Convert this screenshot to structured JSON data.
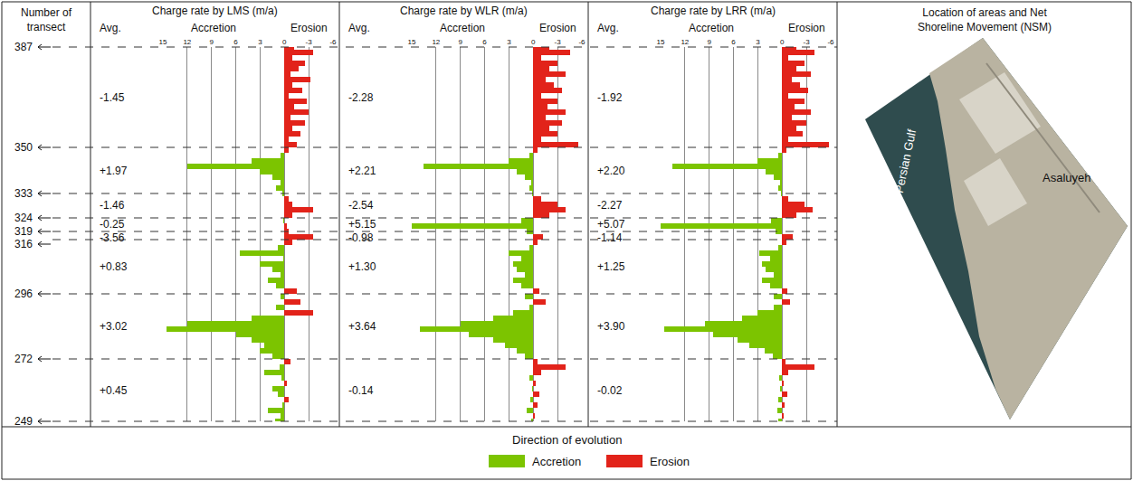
{
  "header": {
    "transect": "Number of transect",
    "location": "Location of areas and Net Shoreline Movement (NSM)",
    "avg": "Avg.",
    "accretion": "Accretion",
    "erosion": "Erosion"
  },
  "transect_marks": [
    387,
    350,
    333,
    324,
    319,
    316,
    296,
    272,
    249
  ],
  "chart_data": [
    {
      "type": "bar",
      "orientation": "horizontal",
      "title": "Charge rate by LMS (m/a)",
      "y": [
        249,
        251,
        253,
        255,
        257,
        259,
        261,
        263,
        265,
        267,
        269,
        271,
        273,
        275,
        277,
        279,
        281,
        283,
        285,
        287,
        289,
        291,
        293,
        295,
        297,
        299,
        301,
        303,
        305,
        307,
        309,
        311,
        313,
        315,
        317,
        319,
        321,
        323,
        325,
        327,
        329,
        331,
        333,
        335,
        337,
        339,
        341,
        343,
        345,
        347,
        349,
        351,
        353,
        355,
        357,
        359,
        361,
        363,
        365,
        367,
        369,
        371,
        373,
        375,
        377,
        379,
        381,
        383,
        385,
        387
      ],
      "values": [
        1.2,
        0.5,
        2.0,
        0.3,
        -0.5,
        0.8,
        1.5,
        -0.3,
        0.4,
        2.5,
        0.6,
        -0.8,
        1.5,
        3.0,
        2.5,
        4.0,
        6.0,
        14.5,
        12.0,
        4.0,
        -3.5,
        1.0,
        -2.0,
        0.5,
        -1.5,
        1.0,
        2.0,
        0.5,
        1.5,
        3.0,
        0.2,
        5.5,
        0.8,
        -1.0,
        -3.5,
        -0.5,
        -0.3,
        0.2,
        -1.0,
        -3.5,
        -1.0,
        -0.5,
        0.3,
        1.0,
        0.5,
        1.5,
        3.0,
        12.0,
        4.0,
        0.5,
        -0.5,
        -1.5,
        -0.5,
        -2.0,
        -1.0,
        -2.5,
        -0.8,
        -3.0,
        -1.2,
        -2.8,
        -0.5,
        -2.2,
        -1.0,
        -3.2,
        -0.8,
        -1.8,
        -2.5,
        -1.0,
        -3.5,
        -1.2
      ],
      "xlim": [
        15,
        -6
      ],
      "xticks": [
        15,
        12,
        9,
        6,
        3,
        0,
        -3,
        -6
      ],
      "ylim": [
        249,
        387
      ],
      "grid": true,
      "tick_labels": "x",
      "averages": [
        -1.45,
        1.97,
        -1.46,
        -0.25,
        -3.56,
        0.83,
        3.02,
        0.45
      ],
      "average_labels": [
        "-1.45",
        "+1.97",
        "-1.46",
        "-0.25",
        "-3.56",
        "+0.83",
        "+3.02",
        "+0.45"
      ]
    },
    {
      "type": "bar",
      "orientation": "horizontal",
      "title": "Charge rate by WLR (m/a)",
      "y": [
        249,
        251,
        253,
        255,
        257,
        259,
        261,
        263,
        265,
        267,
        269,
        271,
        273,
        275,
        277,
        279,
        281,
        283,
        285,
        287,
        289,
        291,
        293,
        295,
        297,
        299,
        301,
        303,
        305,
        307,
        309,
        311,
        313,
        315,
        317,
        319,
        321,
        323,
        325,
        327,
        329,
        331,
        333,
        335,
        337,
        339,
        341,
        343,
        345,
        347,
        349,
        351,
        353,
        355,
        357,
        359,
        361,
        363,
        365,
        367,
        369,
        371,
        373,
        375,
        377,
        379,
        381,
        383,
        385,
        387
      ],
      "values": [
        0.3,
        -0.2,
        0.8,
        -0.5,
        0.4,
        -0.8,
        0.2,
        -0.3,
        0.5,
        -1.0,
        -4.0,
        -0.5,
        1.0,
        2.0,
        3.5,
        5.0,
        8.0,
        14.0,
        9.0,
        5.0,
        2.5,
        0.5,
        -1.5,
        1.0,
        -0.8,
        1.5,
        2.5,
        1.0,
        2.0,
        2.5,
        1.5,
        3.0,
        0.5,
        -0.5,
        -1.2,
        0.8,
        15.0,
        1.5,
        -2.0,
        -4.0,
        -3.0,
        -1.0,
        0.2,
        0.5,
        0.3,
        1.0,
        2.0,
        13.5,
        3.0,
        0.5,
        -0.5,
        -5.5,
        -1.0,
        -3.0,
        -2.0,
        -3.5,
        -1.5,
        -4.0,
        -1.8,
        -3.0,
        -1.0,
        -3.5,
        -2.5,
        -1.5,
        -4.0,
        -2.0,
        -3.0,
        -1.0,
        -4.5,
        -2.0
      ],
      "xlim": [
        15,
        -6
      ],
      "xticks": [
        15,
        12,
        9,
        6,
        3,
        0,
        -3,
        -6
      ],
      "ylim": [
        249,
        387
      ],
      "grid": true,
      "tick_labels": "x",
      "averages": [
        -2.28,
        2.21,
        -2.54,
        5.15,
        -0.98,
        1.3,
        3.64,
        -0.14
      ],
      "average_labels": [
        "-2.28",
        "+2.21",
        "-2.54",
        "+5.15",
        "-0.98",
        "+1.30",
        "+3.64",
        "-0.14"
      ]
    },
    {
      "type": "bar",
      "orientation": "horizontal",
      "title": "Charge rate by LRR (m/a)",
      "y": [
        249,
        251,
        253,
        255,
        257,
        259,
        261,
        263,
        265,
        267,
        269,
        271,
        273,
        275,
        277,
        279,
        281,
        283,
        285,
        287,
        289,
        291,
        293,
        295,
        297,
        299,
        301,
        303,
        305,
        307,
        309,
        311,
        313,
        315,
        317,
        319,
        321,
        323,
        325,
        327,
        329,
        331,
        333,
        335,
        337,
        339,
        341,
        343,
        345,
        347,
        349,
        351,
        353,
        355,
        357,
        359,
        361,
        363,
        365,
        367,
        369,
        371,
        373,
        375,
        377,
        379,
        381,
        383,
        385,
        387
      ],
      "values": [
        0.5,
        -0.2,
        0.6,
        -0.3,
        0.5,
        -0.6,
        0.3,
        -0.2,
        0.4,
        -0.8,
        -4.0,
        -0.4,
        1.2,
        2.2,
        4.0,
        5.5,
        8.5,
        14.5,
        9.5,
        5.0,
        3.0,
        1.0,
        -1.0,
        1.0,
        -0.6,
        1.5,
        2.5,
        1.0,
        2.0,
        2.5,
        1.5,
        2.8,
        0.5,
        -0.5,
        -1.3,
        0.8,
        15.0,
        1.4,
        -1.8,
        -3.8,
        -2.8,
        -0.8,
        0.2,
        0.5,
        0.3,
        1.0,
        2.0,
        13.5,
        3.0,
        0.5,
        -0.5,
        -5.8,
        -0.8,
        -2.5,
        -1.8,
        -3.0,
        -1.2,
        -3.5,
        -1.5,
        -2.8,
        -0.8,
        -3.2,
        -2.2,
        -1.2,
        -3.5,
        -1.8,
        -2.8,
        -0.8,
        -4.0,
        -1.8
      ],
      "xlim": [
        15,
        -6
      ],
      "xticks": [
        15,
        12,
        9,
        6,
        3,
        0,
        -3,
        -6
      ],
      "ylim": [
        249,
        387
      ],
      "grid": true,
      "tick_labels": "x",
      "averages": [
        -1.92,
        2.2,
        -2.27,
        5.07,
        -1.14,
        1.25,
        3.9,
        -0.02
      ],
      "average_labels": [
        "-1.92",
        "+2.20",
        "-2.27",
        "+5.07",
        "-1.14",
        "+1.25",
        "+3.90",
        "-0.02"
      ]
    }
  ],
  "evolution_key": {
    "title": "Direction of evolution",
    "items": [
      {
        "name": "Accretion",
        "color": "#7cc400"
      },
      {
        "name": "Erosion",
        "color": "#e2231a"
      }
    ]
  },
  "map": {
    "sea_label": "Persian Gulf",
    "town_label": "Asaluyeh"
  }
}
